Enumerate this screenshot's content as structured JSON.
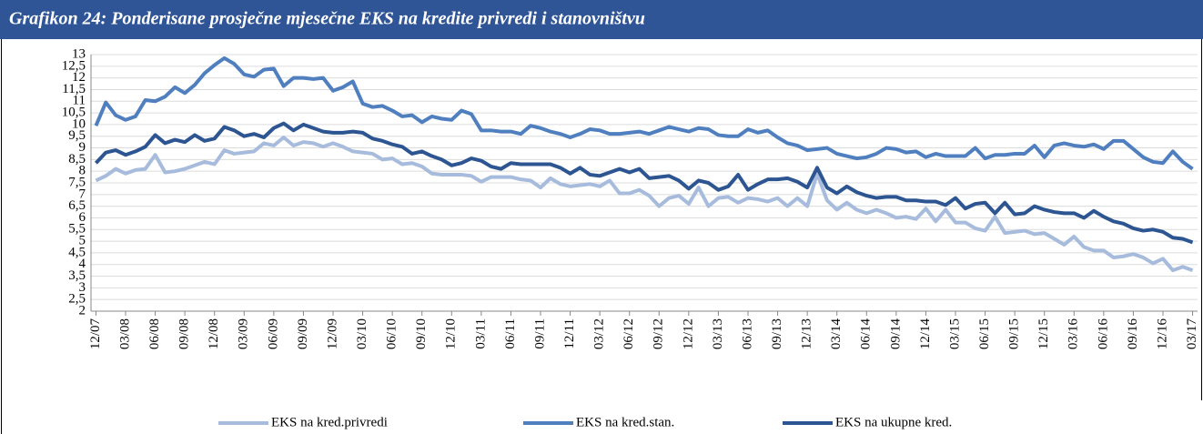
{
  "chart_data": {
    "type": "line",
    "title": "Grafikon 24: Ponderisane prosječne mjesečne EKS na kredite privredi i stanovništvu",
    "categories": [
      "12/07",
      null,
      null,
      "03/08",
      null,
      null,
      "06/08",
      null,
      null,
      "09/08",
      null,
      null,
      "12/08",
      null,
      null,
      "03/09",
      null,
      null,
      "06/09",
      null,
      null,
      "09/09",
      null,
      null,
      "12/09",
      null,
      null,
      "03/10",
      null,
      null,
      "06/10",
      null,
      null,
      "09/10",
      null,
      null,
      "12/10",
      null,
      null,
      "03/11",
      null,
      null,
      "06/11",
      null,
      null,
      "09/11",
      null,
      null,
      "12/11",
      null,
      null,
      "03/12",
      null,
      null,
      "06/12",
      null,
      null,
      "09/12",
      null,
      null,
      "12/12",
      null,
      null,
      "03/13",
      null,
      null,
      "06/13",
      null,
      null,
      "09/13",
      null,
      null,
      "12/13",
      null,
      null,
      "03/14",
      null,
      null,
      "06/14",
      null,
      null,
      "09/14",
      null,
      null,
      "12/14",
      null,
      null,
      "03/15",
      null,
      null,
      "06/15",
      null,
      null,
      "09/15",
      null,
      null,
      "12/15",
      null,
      null,
      "03/16",
      null,
      null,
      "06/16",
      null,
      null,
      "09/16",
      null,
      null,
      "12/16",
      null,
      null,
      "03/17"
    ],
    "series": [
      {
        "name": "EKS na kred.privredi",
        "color": "#a7bbdc",
        "values": [
          7.6,
          7.8,
          8.1,
          7.9,
          8.05,
          8.1,
          8.7,
          7.95,
          8.0,
          8.1,
          8.25,
          8.4,
          8.3,
          8.9,
          8.75,
          8.8,
          8.85,
          9.2,
          9.1,
          9.45,
          9.1,
          9.25,
          9.2,
          9.05,
          9.2,
          9.05,
          8.85,
          8.8,
          8.75,
          8.5,
          8.55,
          8.3,
          8.35,
          8.2,
          7.9,
          7.85,
          7.85,
          7.85,
          7.8,
          7.55,
          7.75,
          7.75,
          7.75,
          7.65,
          7.6,
          7.3,
          7.7,
          7.45,
          7.35,
          7.4,
          7.45,
          7.35,
          7.6,
          7.05,
          7.05,
          7.2,
          6.95,
          6.5,
          6.85,
          6.95,
          6.6,
          7.3,
          6.5,
          6.85,
          6.9,
          6.65,
          6.85,
          6.8,
          6.7,
          6.85,
          6.5,
          6.85,
          6.5,
          7.9,
          6.75,
          6.35,
          6.65,
          6.35,
          6.2,
          6.35,
          6.2,
          6.0,
          6.05,
          5.95,
          6.4,
          5.85,
          6.35,
          5.8,
          5.8,
          5.55,
          5.45,
          6.05,
          5.35,
          5.4,
          5.45,
          5.3,
          5.35,
          5.1,
          4.85,
          5.2,
          4.75,
          4.6,
          4.6,
          4.3,
          4.35,
          4.45,
          4.3,
          4.05,
          4.25,
          3.75,
          3.9,
          3.75
        ]
      },
      {
        "name": "EKS na kred.stan.",
        "color": "#4f7fbf",
        "values": [
          9.95,
          10.95,
          10.4,
          10.2,
          10.35,
          11.05,
          11.0,
          11.2,
          11.6,
          11.35,
          11.7,
          12.2,
          12.55,
          12.85,
          12.6,
          12.15,
          12.05,
          12.35,
          12.4,
          11.65,
          12.0,
          12.0,
          11.95,
          12.0,
          11.45,
          11.6,
          11.85,
          10.9,
          10.75,
          10.8,
          10.6,
          10.35,
          10.4,
          10.1,
          10.35,
          10.25,
          10.2,
          10.6,
          10.45,
          9.75,
          9.75,
          9.7,
          9.7,
          9.6,
          9.95,
          9.85,
          9.7,
          9.6,
          9.45,
          9.6,
          9.8,
          9.75,
          9.6,
          9.6,
          9.65,
          9.7,
          9.6,
          9.75,
          9.9,
          9.8,
          9.7,
          9.85,
          9.8,
          9.55,
          9.5,
          9.5,
          9.8,
          9.65,
          9.75,
          9.45,
          9.2,
          9.1,
          8.9,
          8.95,
          9.0,
          8.75,
          8.65,
          8.55,
          8.6,
          8.75,
          9.0,
          8.95,
          8.8,
          8.85,
          8.6,
          8.75,
          8.65,
          8.65,
          8.65,
          9.0,
          8.55,
          8.7,
          8.7,
          8.75,
          8.75,
          9.1,
          8.6,
          9.1,
          9.2,
          9.1,
          9.05,
          9.15,
          8.95,
          9.3,
          9.3,
          8.95,
          8.6,
          8.4,
          8.35,
          8.85,
          8.4,
          8.1
        ]
      },
      {
        "name": "EKS na ukupne kred.",
        "color": "#2c5592",
        "values": [
          8.35,
          8.8,
          8.9,
          8.7,
          8.85,
          9.05,
          9.55,
          9.2,
          9.35,
          9.25,
          9.55,
          9.3,
          9.4,
          9.9,
          9.75,
          9.5,
          9.6,
          9.45,
          9.85,
          10.05,
          9.75,
          10.0,
          9.85,
          9.7,
          9.65,
          9.65,
          9.7,
          9.65,
          9.4,
          9.3,
          9.15,
          9.05,
          8.75,
          8.85,
          8.65,
          8.5,
          8.25,
          8.35,
          8.55,
          8.45,
          8.2,
          8.1,
          8.35,
          8.3,
          8.3,
          8.3,
          8.3,
          8.15,
          7.9,
          8.15,
          7.85,
          7.8,
          7.95,
          8.1,
          7.95,
          8.1,
          7.7,
          7.75,
          7.8,
          7.6,
          7.25,
          7.6,
          7.5,
          7.2,
          7.35,
          7.85,
          7.2,
          7.45,
          7.65,
          7.65,
          7.7,
          7.55,
          7.3,
          8.15,
          7.3,
          7.05,
          7.35,
          7.1,
          6.95,
          6.85,
          6.9,
          6.9,
          6.75,
          6.75,
          6.7,
          6.7,
          6.55,
          6.85,
          6.4,
          6.6,
          6.65,
          6.2,
          6.65,
          6.15,
          6.2,
          6.5,
          6.35,
          6.25,
          6.2,
          6.2,
          6.0,
          6.3,
          6.05,
          5.85,
          5.75,
          5.55,
          5.45,
          5.5,
          5.4,
          5.15,
          5.1,
          4.95
        ]
      }
    ],
    "ylim": [
      2,
      13
    ],
    "yticks": [
      2,
      {
        "value": 2.5,
        "label": "2,5"
      },
      3,
      {
        "value": 3.5,
        "label": "3,5"
      },
      4,
      {
        "value": 4.5,
        "label": "4,5"
      },
      5,
      {
        "value": 5.5,
        "label": "5,5"
      },
      6,
      {
        "value": 6.5,
        "label": "6,5"
      },
      7,
      {
        "value": 7.5,
        "label": "7,5"
      },
      8,
      {
        "value": 8.5,
        "label": "8,5"
      },
      9,
      {
        "value": 9.5,
        "label": "9,5"
      },
      10,
      {
        "value": 10.5,
        "label": "10,5"
      },
      11,
      {
        "value": 11.5,
        "label": "11,5"
      },
      12,
      {
        "value": 12.5,
        "label": "12,5"
      },
      13
    ],
    "grid": true,
    "legend": "bottom"
  }
}
